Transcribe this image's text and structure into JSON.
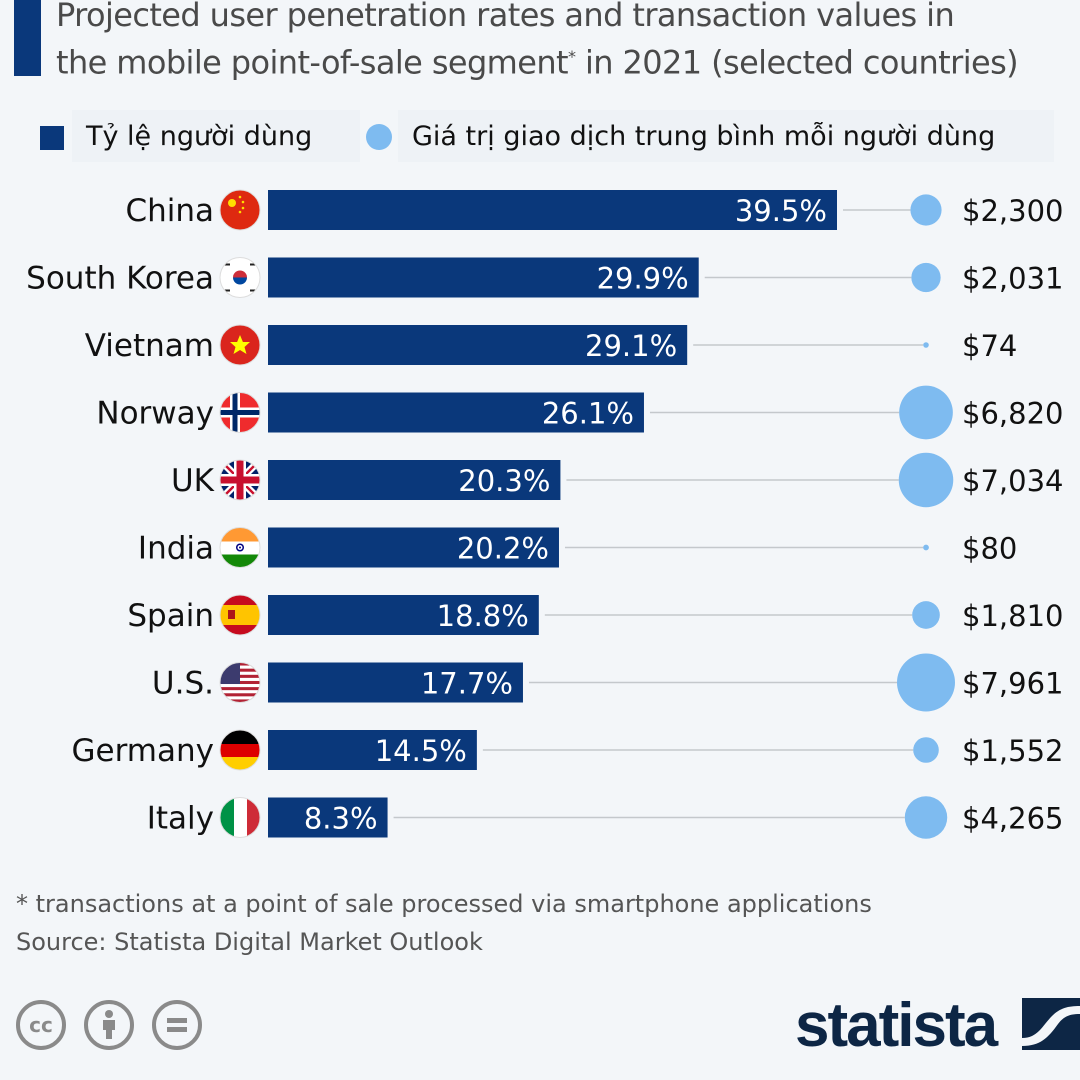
{
  "header": {
    "title_line1": "Projected user penetration rates and transaction values in",
    "title_line2_pre": "the mobile point-of-sale segment",
    "title_sup": "*",
    "title_line2_post": " in 2021 (selected countries)"
  },
  "legend": {
    "items": [
      {
        "label": "Tỷ lệ người dùng",
        "shape": "square",
        "color": "#0a387b"
      },
      {
        "label": "Giá trị giao dịch trung bình mỗi người dùng",
        "shape": "circle",
        "color": "#7ebbf0"
      }
    ]
  },
  "chart_data": {
    "type": "bar",
    "title": "Projected user penetration rates and transaction values in the mobile point-of-sale segment* in 2021 (selected countries)",
    "orientation": "horizontal",
    "categories": [
      "China",
      "South Korea",
      "Vietnam",
      "Norway",
      "UK",
      "India",
      "Spain",
      "U.S.",
      "Germany",
      "Italy"
    ],
    "flags": [
      "china-flag",
      "south-korea-flag",
      "vietnam-flag",
      "norway-flag",
      "uk-flag",
      "india-flag",
      "spain-flag",
      "us-flag",
      "germany-flag",
      "italy-flag"
    ],
    "series": [
      {
        "name": "Tỷ lệ người dùng",
        "type": "bar",
        "unit": "%",
        "color": "#0a387b",
        "values": [
          39.5,
          29.9,
          29.1,
          26.1,
          20.3,
          20.2,
          18.8,
          17.7,
          14.5,
          8.3
        ],
        "labels": [
          "39.5%",
          "29.9%",
          "29.1%",
          "26.1%",
          "20.3%",
          "20.2%",
          "18.8%",
          "17.7%",
          "14.5%",
          "8.3%"
        ]
      },
      {
        "name": "Giá trị giao dịch trung bình mỗi người dùng",
        "type": "bubble",
        "unit": "USD",
        "color": "#7ebbf0",
        "values": [
          2300,
          2031,
          74,
          6820,
          7034,
          80,
          1810,
          7961,
          1552,
          4265
        ],
        "labels": [
          "$2,300",
          "$2,031",
          "$74",
          "$6,820",
          "$7,034",
          "$80",
          "$1,810",
          "$7,961",
          "$1,552",
          "$4,265"
        ]
      }
    ],
    "xlim": [
      0,
      40
    ],
    "grid": false,
    "legend_position": "top"
  },
  "footer": {
    "note": "* transactions at a point of sale processed via smartphone applications",
    "source": "Source: Statista Digital Market Outlook",
    "license_icons": [
      "cc-icon",
      "attribution-icon",
      "no-derivatives-icon"
    ],
    "logo": "statista"
  },
  "colors": {
    "bar": "#0a387b",
    "bubble": "#7ebbf0",
    "connector": "#c4c8cc",
    "background": "#f3f6f9"
  }
}
